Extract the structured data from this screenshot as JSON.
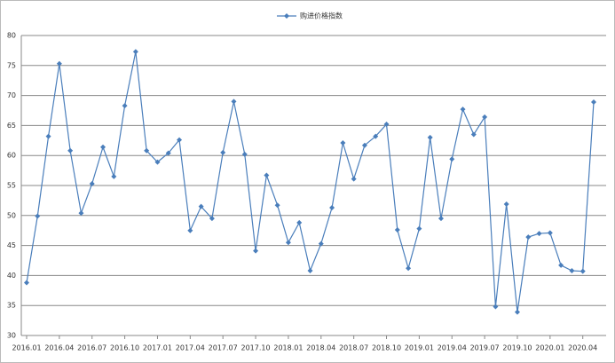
{
  "chart_data": {
    "type": "line",
    "categories": [
      "2016.01",
      null,
      null,
      "2016.04",
      null,
      null,
      "2016.07",
      null,
      null,
      "2016.10",
      null,
      null,
      "2017.01",
      null,
      null,
      "2017.04",
      null,
      null,
      "2017.07",
      null,
      null,
      "2017.10",
      null,
      null,
      "2018.01",
      null,
      null,
      "2018.04",
      null,
      null,
      "2018.07",
      null,
      null,
      "2018.10",
      null,
      null,
      "2019.01",
      null,
      null,
      "2019.04",
      null,
      null,
      "2019.07",
      null,
      null,
      "2019.10",
      null,
      null,
      "2020.01",
      null,
      null,
      "2020.04",
      null
    ],
    "series": [
      {
        "name": "购进价格指数",
        "color": "#4a7ebb",
        "values": [
          38.8,
          49.9,
          63.2,
          75.3,
          60.8,
          50.4,
          55.3,
          61.4,
          56.5,
          68.3,
          77.3,
          60.8,
          58.9,
          60.4,
          62.6,
          47.5,
          51.5,
          49.5,
          60.5,
          69.0,
          60.2,
          44.1,
          56.7,
          51.7,
          45.5,
          48.8,
          40.8,
          45.3,
          51.3,
          62.1,
          56.1,
          61.7,
          63.2,
          65.2,
          47.6,
          41.2,
          47.8,
          63.0,
          49.5,
          59.4,
          67.7,
          63.5,
          66.4,
          34.8,
          51.9,
          33.9,
          46.4,
          47.0,
          47.1,
          41.7,
          40.8,
          40.7,
          68.9
        ]
      }
    ],
    "ylim": [
      30,
      80
    ],
    "yticks": [
      30,
      35,
      40,
      45,
      50,
      55,
      60,
      65,
      70,
      75,
      80
    ],
    "grid": true,
    "legend": "top"
  }
}
